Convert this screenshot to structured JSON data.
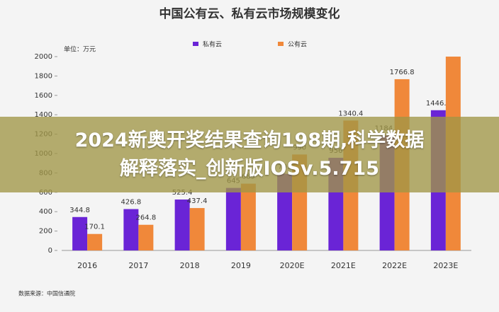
{
  "chart_data": {
    "type": "bar",
    "title": "中国公有云、私有云市场规模变化",
    "unit": "单位：万元",
    "categories": [
      "2016",
      "2017",
      "2018",
      "2019",
      "2020E",
      "2021E",
      "2022E",
      "2023E"
    ],
    "series": [
      {
        "name": "私有云",
        "color": "#6a24d6",
        "values": [
          344.8,
          426.8,
          525.4,
          645,
          791,
          956,
          1184.7,
          1446.8
        ]
      },
      {
        "name": "公有云",
        "color": "#f0883a",
        "values": [
          170.1,
          264.8,
          437.4,
          689,
          990,
          1340.4,
          1766.8,
          2000
        ]
      }
    ],
    "ylim": [
      0,
      2000
    ],
    "yticks": [
      0,
      200,
      400,
      600,
      800,
      1000,
      1200,
      1400,
      1600,
      1800,
      2000
    ],
    "grid": false,
    "source": "数据来源：中国信通院"
  },
  "banner": {
    "lines": [
      "2024新奥开奖结果查询198期,科学数据",
      "解释落实_创新版IOSv.5.715"
    ]
  }
}
